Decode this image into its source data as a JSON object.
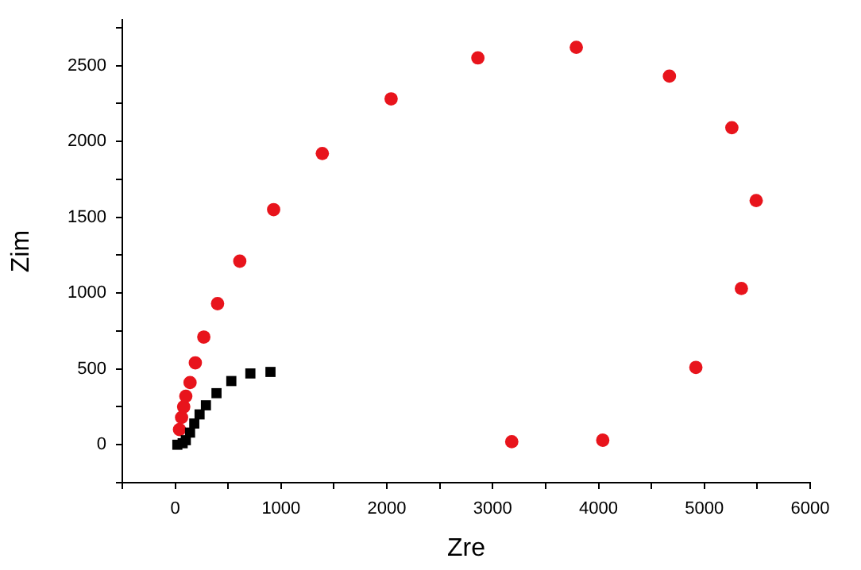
{
  "chart_data": {
    "type": "scatter",
    "xlabel": "Zre",
    "ylabel": "Zim",
    "xlim": [
      -500,
      6000
    ],
    "ylim": [
      -250,
      2800
    ],
    "xticks": [
      {
        "value": -500,
        "label": null
      },
      0,
      {
        "value": 500,
        "label": null
      },
      1000,
      {
        "value": 1500,
        "label": null
      },
      2000,
      {
        "value": 2500,
        "label": null
      },
      3000,
      {
        "value": 3500,
        "label": null
      },
      4000,
      {
        "value": 4500,
        "label": null
      },
      5000,
      {
        "value": 5500,
        "label": null
      },
      6000
    ],
    "yticks": [
      {
        "value": -250,
        "label": null
      },
      0,
      {
        "value": 250,
        "label": null
      },
      500,
      {
        "value": 750,
        "label": null
      },
      1000,
      {
        "value": 1250,
        "label": null
      },
      1500,
      {
        "value": 1750,
        "label": null
      },
      2000,
      {
        "value": 2250,
        "label": null
      },
      2500,
      {
        "value": 2750,
        "label": null
      }
    ],
    "grid": false,
    "legend": false,
    "series": [
      {
        "color": "#000000",
        "marker": "square",
        "x": [
          20,
          70,
          100,
          140,
          180,
          230,
          290,
          390,
          530,
          710,
          900
        ],
        "values": [
          0,
          10,
          30,
          80,
          140,
          200,
          260,
          340,
          420,
          470,
          480
        ]
      },
      {
        "color": "#e8141c",
        "marker": "circle",
        "x": [
          40,
          60,
          80,
          100,
          140,
          190,
          270,
          400,
          610,
          930,
          1390,
          2040,
          2860,
          3790,
          4670,
          5260,
          5490,
          5350,
          4920,
          4040,
          3180
        ],
        "values": [
          100,
          180,
          250,
          320,
          410,
          540,
          710,
          930,
          1210,
          1550,
          1920,
          2280,
          2550,
          2620,
          2430,
          2090,
          1610,
          1030,
          510,
          30,
          20
        ]
      }
    ]
  }
}
